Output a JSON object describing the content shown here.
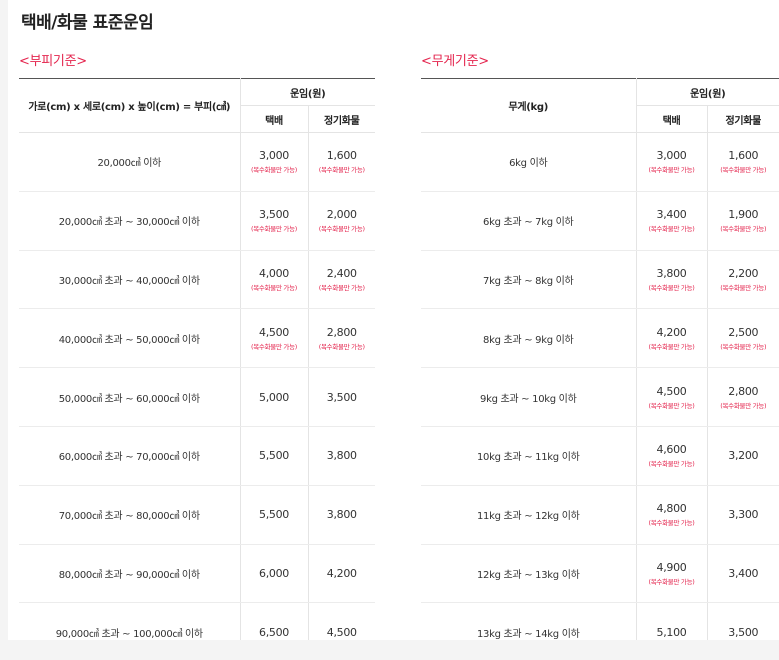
{
  "page_title": "택배/화물 표준운임",
  "volume": {
    "title": "<부피기준>",
    "header": {
      "range": "가로(cm) x 세로(cm) x 높이(cm) = 부피(㎤)",
      "fare": "운임(원)",
      "parcel": "택배",
      "freight": "정기화물"
    },
    "rows": [
      {
        "range": "20,000㎤ 이하",
        "parcel": "3,000",
        "parcel_note": "(복수화물만 가능)",
        "freight": "1,600",
        "freight_note": "(복수화물만 가능)"
      },
      {
        "range": "20,000㎤ 초과 ~ 30,000㎤ 이하",
        "parcel": "3,500",
        "parcel_note": "(복수화물만 가능)",
        "freight": "2,000",
        "freight_note": "(복수화물만 가능)"
      },
      {
        "range": "30,000㎤ 초과 ~ 40,000㎤ 이하",
        "parcel": "4,000",
        "parcel_note": "(복수화물만 가능)",
        "freight": "2,400",
        "freight_note": "(복수화물만 가능)"
      },
      {
        "range": "40,000㎤ 초과 ~ 50,000㎤ 이하",
        "parcel": "4,500",
        "parcel_note": "(복수화물만 가능)",
        "freight": "2,800",
        "freight_note": "(복수화물만 가능)"
      },
      {
        "range": "50,000㎤ 초과 ~ 60,000㎤ 이하",
        "parcel": "5,000",
        "parcel_note": "",
        "freight": "3,500",
        "freight_note": ""
      },
      {
        "range": "60,000㎤ 초과 ~ 70,000㎤ 이하",
        "parcel": "5,500",
        "parcel_note": "",
        "freight": "3,800",
        "freight_note": ""
      },
      {
        "range": "70,000㎤ 초과 ~ 80,000㎤ 이하",
        "parcel": "5,500",
        "parcel_note": "",
        "freight": "3,800",
        "freight_note": ""
      },
      {
        "range": "80,000㎤ 초과 ~ 90,000㎤ 이하",
        "parcel": "6,000",
        "parcel_note": "",
        "freight": "4,200",
        "freight_note": ""
      },
      {
        "range": "90,000㎤ 초과 ~ 100,000㎤ 이하",
        "parcel": "6,500",
        "parcel_note": "",
        "freight": "4,500",
        "freight_note": ""
      }
    ]
  },
  "weight": {
    "title": "<무게기준>",
    "header": {
      "range": "무게(kg)",
      "fare": "운임(원)",
      "parcel": "택배",
      "freight": "정기화물"
    },
    "rows": [
      {
        "range": "6kg 이하",
        "parcel": "3,000",
        "parcel_note": "(복수화물만 가능)",
        "freight": "1,600",
        "freight_note": "(복수화물만 가능)"
      },
      {
        "range": "6kg 초과 ~ 7kg 이하",
        "parcel": "3,400",
        "parcel_note": "(복수화물만 가능)",
        "freight": "1,900",
        "freight_note": "(복수화물만 가능)"
      },
      {
        "range": "7kg 초과 ~ 8kg 이하",
        "parcel": "3,800",
        "parcel_note": "(복수화물만 가능)",
        "freight": "2,200",
        "freight_note": "(복수화물만 가능)"
      },
      {
        "range": "8kg 초과 ~ 9kg 이하",
        "parcel": "4,200",
        "parcel_note": "(복수화물만 가능)",
        "freight": "2,500",
        "freight_note": "(복수화물만 가능)"
      },
      {
        "range": "9kg 초과 ~ 10kg 이하",
        "parcel": "4,500",
        "parcel_note": "(복수화물만 가능)",
        "freight": "2,800",
        "freight_note": "(복수화물만 가능)"
      },
      {
        "range": "10kg 초과 ~ 11kg 이하",
        "parcel": "4,600",
        "parcel_note": "(복수화물만 가능)",
        "freight": "3,200",
        "freight_note": ""
      },
      {
        "range": "11kg 초과 ~ 12kg 이하",
        "parcel": "4,800",
        "parcel_note": "(복수화물만 가능)",
        "freight": "3,300",
        "freight_note": ""
      },
      {
        "range": "12kg 초과 ~ 13kg 이하",
        "parcel": "4,900",
        "parcel_note": "(복수화물만 가능)",
        "freight": "3,400",
        "freight_note": ""
      },
      {
        "range": "13kg 초과 ~ 14kg 이하",
        "parcel": "5,100",
        "parcel_note": "",
        "freight": "3,500",
        "freight_note": ""
      }
    ]
  }
}
